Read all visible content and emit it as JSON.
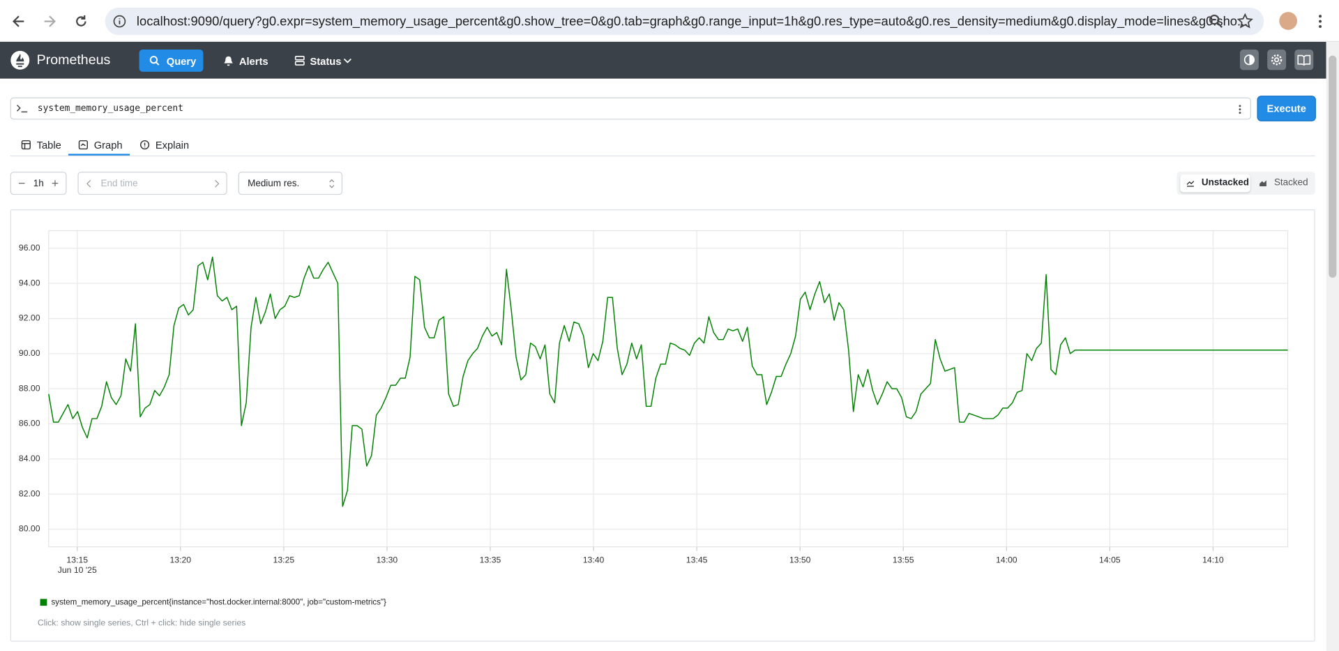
{
  "browser": {
    "url": "localhost:9090/query?g0.expr=system_memory_usage_percent&g0.show_tree=0&g0.tab=graph&g0.range_input=1h&g0.res_type=auto&g0.res_density=medium&g0.display_mode=lines&g0.sho..."
  },
  "nav": {
    "brand": "Prometheus",
    "items": [
      "Query",
      "Alerts",
      "Status"
    ]
  },
  "query": {
    "expr": "system_memory_usage_percent",
    "execute": "Execute"
  },
  "tabs": [
    "Table",
    "Graph",
    "Explain"
  ],
  "controls": {
    "range": "1h",
    "end_time": "End time",
    "resolution": "Medium res.",
    "unstacked": "Unstacked",
    "stacked": "Stacked"
  },
  "chart_data": {
    "type": "line",
    "x": [
      "13:13:37",
      "13:13:51",
      "13:14:05",
      "13:14:19",
      "13:14:33",
      "13:14:47",
      "13:15:01",
      "13:15:15",
      "13:15:29",
      "13:15:43",
      "13:15:57",
      "13:16:11",
      "13:16:25",
      "13:16:39",
      "13:16:53",
      "13:17:07",
      "13:17:21",
      "13:17:35",
      "13:17:49",
      "13:18:03",
      "13:18:17",
      "13:18:31",
      "13:18:45",
      "13:18:59",
      "13:19:13",
      "13:19:27",
      "13:19:41",
      "13:19:55",
      "13:20:09",
      "13:20:23",
      "13:20:37",
      "13:20:51",
      "13:21:05",
      "13:21:19",
      "13:21:33",
      "13:21:47",
      "13:22:01",
      "13:22:15",
      "13:22:29",
      "13:22:43",
      "13:22:57",
      "13:23:11",
      "13:23:25",
      "13:23:39",
      "13:23:53",
      "13:24:07",
      "13:24:21",
      "13:24:35",
      "13:24:49",
      "13:25:03",
      "13:25:17",
      "13:25:31",
      "13:25:45",
      "13:25:59",
      "13:26:13",
      "13:26:27",
      "13:26:41",
      "13:26:55",
      "13:27:09",
      "13:27:23",
      "13:27:37",
      "13:27:51",
      "13:28:05",
      "13:28:19",
      "13:28:33",
      "13:28:47",
      "13:29:01",
      "13:29:15",
      "13:29:29",
      "13:29:43",
      "13:29:57",
      "13:30:11",
      "13:30:25",
      "13:30:39",
      "13:30:53",
      "13:31:07",
      "13:31:21",
      "13:31:35",
      "13:31:49",
      "13:32:03",
      "13:32:17",
      "13:32:31",
      "13:32:45",
      "13:32:59",
      "13:33:13",
      "13:33:27",
      "13:33:41",
      "13:33:55",
      "13:34:09",
      "13:34:23",
      "13:34:37",
      "13:34:51",
      "13:35:05",
      "13:35:19",
      "13:35:33",
      "13:35:47",
      "13:36:01",
      "13:36:15",
      "13:36:29",
      "13:36:43",
      "13:36:57",
      "13:37:11",
      "13:37:25",
      "13:37:39",
      "13:37:53",
      "13:38:07",
      "13:38:21",
      "13:38:35",
      "13:38:49",
      "13:39:03",
      "13:39:17",
      "13:39:31",
      "13:39:45",
      "13:39:59",
      "13:40:13",
      "13:40:27",
      "13:40:41",
      "13:40:55",
      "13:41:09",
      "13:41:23",
      "13:41:37",
      "13:41:51",
      "13:42:05",
      "13:42:19",
      "13:42:33",
      "13:42:47",
      "13:43:01",
      "13:43:15",
      "13:43:29",
      "13:43:43",
      "13:43:57",
      "13:44:11",
      "13:44:25",
      "13:44:39",
      "13:44:53",
      "13:45:07",
      "13:45:21",
      "13:45:35",
      "13:45:49",
      "13:46:03",
      "13:46:17",
      "13:46:31",
      "13:46:45",
      "13:46:59",
      "13:47:13",
      "13:47:27",
      "13:47:41",
      "13:47:55",
      "13:48:09",
      "13:48:23",
      "13:48:37",
      "13:48:51",
      "13:49:05",
      "13:49:19",
      "13:49:33",
      "13:49:47",
      "13:50:01",
      "13:50:15",
      "13:50:29",
      "13:50:43",
      "13:50:57",
      "13:51:11",
      "13:51:25",
      "13:51:39",
      "13:51:53",
      "13:52:07",
      "13:52:21",
      "13:52:35",
      "13:52:49",
      "13:53:03",
      "13:53:17",
      "13:53:31",
      "13:53:45",
      "13:53:59",
      "13:54:13",
      "13:54:27",
      "13:54:41",
      "13:54:55",
      "13:55:09",
      "13:55:23",
      "13:55:37",
      "13:55:51",
      "13:56:05",
      "13:56:19",
      "13:56:33",
      "13:56:47",
      "13:57:01",
      "13:57:15",
      "13:57:29",
      "13:57:43",
      "13:57:57",
      "13:58:11",
      "13:58:25",
      "13:58:39",
      "13:58:53",
      "13:59:07",
      "13:59:21",
      "13:59:35",
      "13:59:49",
      "14:00:03",
      "14:00:17",
      "14:00:31",
      "14:00:45",
      "14:00:59",
      "14:01:13",
      "14:01:27",
      "14:01:41",
      "14:01:55",
      "14:02:09",
      "14:02:23",
      "14:02:37",
      "14:02:51",
      "14:03:05",
      "14:03:19",
      "14:13:37"
    ],
    "series": [
      {
        "name": "system_memory_usage_percent{instance=\"host.docker.internal:8000\", job=\"custom-metrics\"}",
        "color": "#008000",
        "values": [
          87.7,
          86.1,
          86.1,
          86.6,
          87.1,
          86.3,
          86.7,
          85.8,
          85.2,
          86.3,
          86.3,
          87.0,
          88.4,
          87.5,
          87.1,
          87.6,
          89.7,
          89.0,
          91.7,
          86.4,
          86.9,
          87.1,
          87.9,
          87.6,
          88.1,
          88.8,
          91.6,
          92.6,
          92.8,
          92.2,
          92.5,
          95.0,
          95.2,
          94.2,
          95.5,
          93.3,
          93.0,
          93.2,
          92.5,
          92.7,
          85.9,
          87.2,
          91.5,
          93.2,
          91.7,
          92.4,
          93.4,
          92.0,
          92.5,
          92.7,
          93.3,
          93.2,
          93.3,
          94.3,
          95.0,
          94.3,
          94.3,
          94.8,
          95.2,
          94.6,
          94.0,
          81.3,
          82.2,
          85.9,
          85.9,
          85.7,
          83.6,
          84.2,
          86.5,
          86.9,
          87.5,
          88.2,
          88.2,
          88.6,
          88.6,
          89.8,
          94.4,
          94.2,
          91.5,
          90.9,
          90.9,
          91.9,
          92.1,
          87.7,
          87.0,
          87.1,
          88.7,
          89.6,
          90.0,
          90.3,
          91.0,
          91.5,
          91.0,
          91.2,
          90.5,
          94.8,
          92.5,
          89.8,
          88.5,
          88.8,
          90.6,
          90.4,
          89.7,
          90.5,
          87.7,
          87.2,
          90.6,
          91.6,
          90.7,
          91.8,
          91.7,
          91.0,
          89.2,
          90.0,
          89.6,
          90.7,
          93.2,
          93.2,
          90.3,
          88.8,
          89.4,
          90.6,
          89.7,
          90.5,
          87.0,
          87.0,
          88.6,
          89.4,
          89.4,
          90.6,
          90.5,
          90.3,
          90.2,
          89.9,
          90.6,
          90.9,
          90.6,
          92.1,
          91.2,
          90.8,
          90.8,
          91.4,
          91.3,
          91.4,
          90.7,
          91.5,
          89.3,
          88.8,
          88.8,
          87.1,
          87.8,
          88.7,
          88.7,
          89.4,
          90.0,
          91.0,
          93.1,
          93.5,
          92.5,
          93.4,
          94.1,
          92.9,
          93.4,
          91.9,
          92.9,
          92.5,
          90.2,
          86.7,
          88.8,
          88.1,
          89.1,
          87.9,
          87.1,
          87.7,
          88.4,
          88.0,
          88.0,
          87.5,
          86.4,
          86.3,
          86.7,
          87.7,
          88.0,
          88.3,
          90.8,
          89.7,
          89.0,
          89.1,
          89.2,
          86.1,
          86.1,
          86.6,
          86.5,
          86.4,
          86.3,
          86.3,
          86.3,
          86.5,
          86.9,
          86.9,
          87.2,
          87.8,
          87.9,
          90.0,
          89.6,
          90.3,
          90.6,
          94.5,
          89.1,
          88.8,
          90.5,
          90.9,
          90.0,
          90.2,
          90.2
        ]
      }
    ],
    "xlim": [
      "13:13:37",
      "14:13:37"
    ],
    "xticks": [
      {
        "value": "13:15:00",
        "label": "13:15"
      },
      {
        "value": "13:20:00",
        "label": "13:20"
      },
      {
        "value": "13:25:00",
        "label": "13:25"
      },
      {
        "value": "13:30:00",
        "label": "13:30"
      },
      {
        "value": "13:35:00",
        "label": "13:35"
      },
      {
        "value": "13:40:00",
        "label": "13:40"
      },
      {
        "value": "13:45:00",
        "label": "13:45"
      },
      {
        "value": "13:50:00",
        "label": "13:50"
      },
      {
        "value": "13:55:00",
        "label": "13:55"
      },
      {
        "value": "14:00:00",
        "label": "14:00"
      },
      {
        "value": "14:05:00",
        "label": "14:05"
      },
      {
        "value": "14:10:00",
        "label": "14:10"
      }
    ],
    "x_date_label": "Jun 10 '25",
    "ylim": [
      79,
      97
    ],
    "yticks": [
      {
        "value": 80,
        "label": "80.00"
      },
      {
        "value": 82,
        "label": "82.00"
      },
      {
        "value": 84,
        "label": "84.00"
      },
      {
        "value": 86,
        "label": "86.00"
      },
      {
        "value": 88,
        "label": "88.00"
      },
      {
        "value": 90,
        "label": "90.00"
      },
      {
        "value": 92,
        "label": "92.00"
      },
      {
        "value": 94,
        "label": "94.00"
      },
      {
        "value": 96,
        "label": "96.00"
      }
    ],
    "grid": true
  },
  "legend_hint": "Click: show single series, Ctrl + click: hide single series"
}
